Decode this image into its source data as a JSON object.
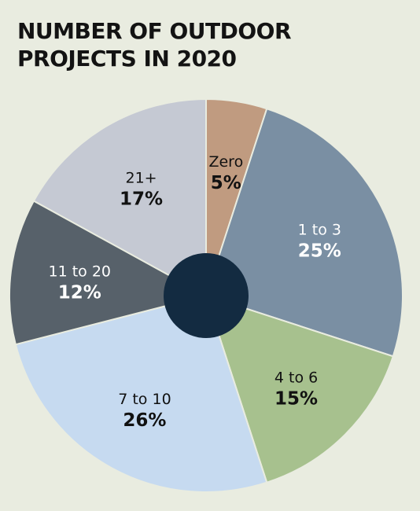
{
  "title_lines": [
    "NUMBER OF OUTDOOR",
    "PROJECTS IN 2020"
  ],
  "chart_data": {
    "type": "pie",
    "style": "donut-center-dot",
    "title": "NUMBER OF OUTDOOR PROJECTS IN 2020",
    "categories": [
      "Zero",
      "1 to 3",
      "4 to 6",
      "7 to 10",
      "11 to 20",
      "21+"
    ],
    "values": [
      5,
      25,
      15,
      26,
      12,
      17
    ],
    "value_labels": [
      "5%",
      "25%",
      "15%",
      "26%",
      "12%",
      "17%"
    ],
    "colors": [
      "#c09b80",
      "#7a8fa3",
      "#a7c18e",
      "#c6daf0",
      "#57616a",
      "#c5c9d3"
    ],
    "label_colors": [
      "#111111",
      "#ffffff",
      "#111111",
      "#111111",
      "#ffffff",
      "#111111"
    ],
    "center_color": "#132b41",
    "start_angle_deg": 0,
    "direction": "clockwise"
  }
}
